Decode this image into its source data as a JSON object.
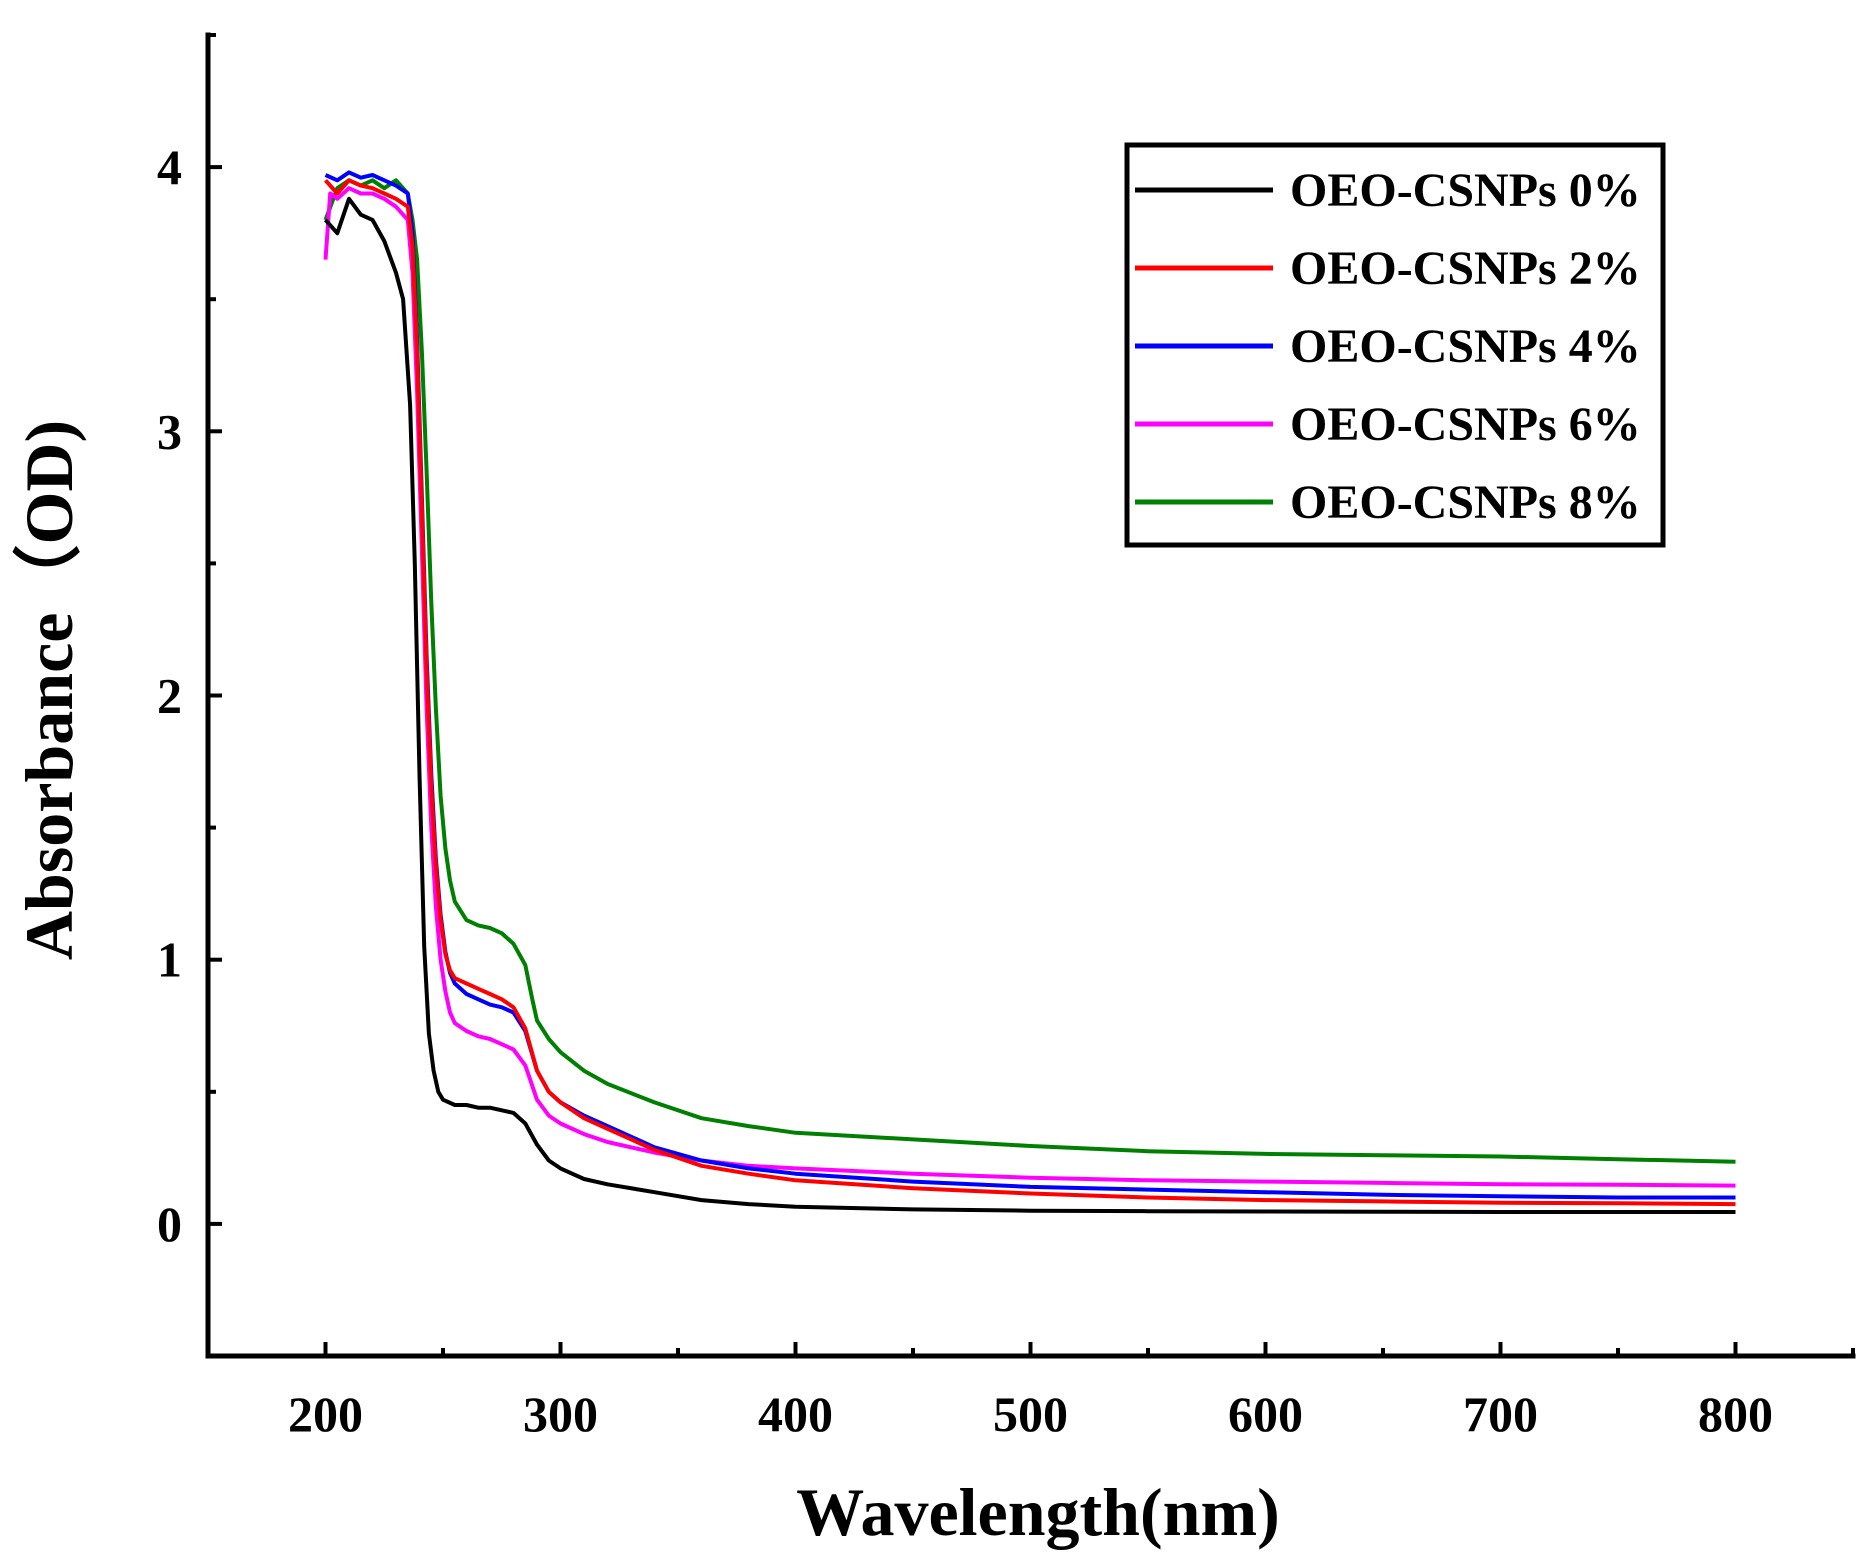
{
  "chart_data": {
    "type": "line",
    "title": "",
    "xlabel": "Wavelength(nm)",
    "ylabel": "Absorbance（OD)",
    "xlim": [
      150,
      850
    ],
    "ylim": [
      -0.5,
      4.5
    ],
    "xticks": [
      200,
      300,
      400,
      500,
      600,
      700,
      800
    ],
    "xtick_labels": [
      "200",
      "300",
      "400",
      "500",
      "600",
      "700",
      "800"
    ],
    "yticks": [
      0,
      1,
      2,
      3,
      4
    ],
    "ytick_labels": [
      "0",
      "1",
      "2",
      "3",
      "4"
    ],
    "legend_position": "top-right",
    "grid": false,
    "series": [
      {
        "name": "OEO-CSNPs 0%",
        "color": "#000000",
        "x": [
          200,
          205,
          210,
          215,
          220,
          225,
          230,
          233,
          236,
          238,
          240,
          242,
          244,
          246,
          248,
          250,
          255,
          260,
          265,
          270,
          275,
          280,
          285,
          290,
          295,
          300,
          310,
          320,
          340,
          360,
          380,
          400,
          450,
          500,
          550,
          600,
          650,
          700,
          750,
          800
        ],
        "y": [
          3.8,
          3.75,
          3.88,
          3.82,
          3.8,
          3.72,
          3.6,
          3.5,
          3.1,
          2.5,
          1.7,
          1.05,
          0.72,
          0.58,
          0.5,
          0.47,
          0.45,
          0.45,
          0.44,
          0.44,
          0.43,
          0.42,
          0.38,
          0.3,
          0.24,
          0.21,
          0.17,
          0.15,
          0.12,
          0.09,
          0.075,
          0.065,
          0.055,
          0.05,
          0.048,
          0.047,
          0.046,
          0.045,
          0.045,
          0.045
        ]
      },
      {
        "name": "OEO-CSNPs 2%",
        "color": "#ff0000",
        "x": [
          200,
          205,
          210,
          215,
          220,
          225,
          230,
          235,
          237,
          239,
          241,
          243,
          245,
          247,
          249,
          251,
          253,
          255,
          260,
          265,
          270,
          275,
          280,
          285,
          290,
          295,
          300,
          310,
          320,
          340,
          360,
          380,
          400,
          450,
          500,
          550,
          600,
          650,
          700,
          750,
          800
        ],
        "y": [
          3.95,
          3.9,
          3.95,
          3.93,
          3.92,
          3.9,
          3.88,
          3.85,
          3.7,
          3.3,
          2.7,
          2.1,
          1.65,
          1.35,
          1.15,
          1.02,
          0.96,
          0.93,
          0.91,
          0.89,
          0.87,
          0.85,
          0.82,
          0.74,
          0.58,
          0.5,
          0.46,
          0.4,
          0.36,
          0.28,
          0.22,
          0.19,
          0.165,
          0.135,
          0.115,
          0.1,
          0.09,
          0.085,
          0.08,
          0.078,
          0.075
        ]
      },
      {
        "name": "OEO-CSNPs 4%",
        "color": "#0000ff",
        "x": [
          200,
          205,
          210,
          215,
          220,
          225,
          230,
          235,
          237,
          239,
          241,
          243,
          245,
          247,
          249,
          251,
          253,
          255,
          260,
          265,
          270,
          275,
          280,
          285,
          290,
          295,
          300,
          310,
          320,
          340,
          360,
          380,
          400,
          450,
          500,
          550,
          600,
          650,
          700,
          750,
          800
        ],
        "y": [
          3.97,
          3.95,
          3.98,
          3.96,
          3.97,
          3.95,
          3.93,
          3.9,
          3.75,
          3.35,
          2.75,
          2.15,
          1.7,
          1.38,
          1.17,
          1.03,
          0.95,
          0.91,
          0.87,
          0.85,
          0.83,
          0.82,
          0.8,
          0.73,
          0.58,
          0.5,
          0.46,
          0.41,
          0.37,
          0.29,
          0.24,
          0.21,
          0.19,
          0.16,
          0.14,
          0.13,
          0.12,
          0.11,
          0.105,
          0.1,
          0.1
        ]
      },
      {
        "name": "OEO-CSNPs 6%",
        "color": "#ff00ff",
        "x": [
          200,
          202,
          205,
          210,
          215,
          220,
          225,
          230,
          235,
          237,
          239,
          241,
          243,
          245,
          247,
          249,
          251,
          253,
          255,
          260,
          265,
          270,
          275,
          280,
          285,
          290,
          295,
          300,
          310,
          320,
          340,
          360,
          380,
          400,
          450,
          500,
          550,
          600,
          650,
          700,
          750,
          800
        ],
        "y": [
          3.65,
          3.9,
          3.88,
          3.92,
          3.9,
          3.9,
          3.88,
          3.85,
          3.8,
          3.6,
          3.15,
          2.55,
          1.95,
          1.5,
          1.2,
          1.0,
          0.88,
          0.8,
          0.76,
          0.73,
          0.71,
          0.7,
          0.68,
          0.66,
          0.6,
          0.47,
          0.41,
          0.38,
          0.34,
          0.31,
          0.27,
          0.24,
          0.22,
          0.21,
          0.19,
          0.175,
          0.165,
          0.16,
          0.155,
          0.15,
          0.148,
          0.145
        ]
      },
      {
        "name": "OEO-CSNPs 8%",
        "color": "#008000",
        "x": [
          200,
          205,
          210,
          215,
          220,
          225,
          230,
          235,
          237,
          239,
          241,
          243,
          245,
          247,
          249,
          251,
          253,
          255,
          260,
          265,
          270,
          275,
          280,
          285,
          288,
          290,
          295,
          300,
          310,
          320,
          340,
          360,
          380,
          400,
          450,
          500,
          550,
          600,
          650,
          700,
          750,
          800
        ],
        "y": [
          3.8,
          3.92,
          3.95,
          3.93,
          3.95,
          3.92,
          3.95,
          3.9,
          3.8,
          3.65,
          3.3,
          2.85,
          2.35,
          1.95,
          1.62,
          1.42,
          1.3,
          1.22,
          1.15,
          1.13,
          1.12,
          1.1,
          1.06,
          0.98,
          0.85,
          0.77,
          0.7,
          0.65,
          0.58,
          0.53,
          0.46,
          0.4,
          0.37,
          0.345,
          0.32,
          0.295,
          0.275,
          0.265,
          0.26,
          0.255,
          0.245,
          0.235
        ]
      }
    ]
  }
}
